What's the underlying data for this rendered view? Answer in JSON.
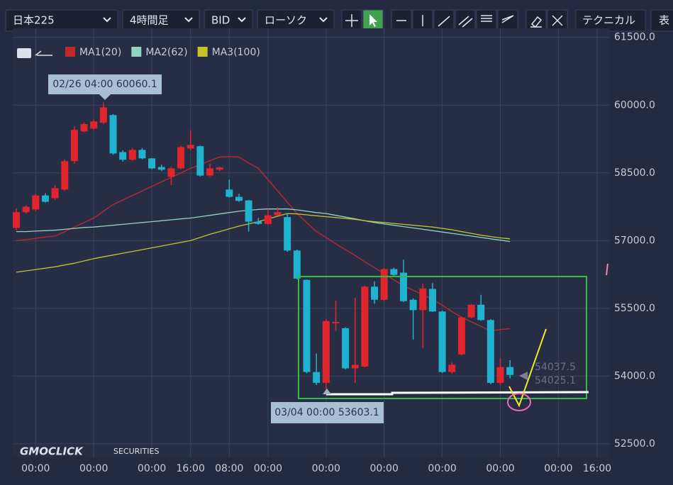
{
  "toolbar": {
    "dropdowns": [
      "日本225",
      "4時間足",
      "BID",
      "ローソク"
    ],
    "buttons": [
      "テクニカル",
      "表"
    ]
  },
  "watermark": {
    "brand": "GMOCLICK",
    "sub": "SECURITIES"
  },
  "chart_data": {
    "type": "candlestick",
    "up_color": "#e0262c",
    "down_color": "#1fb3cf",
    "categories": [
      null,
      null,
      "00:00",
      null,
      null,
      null,
      null,
      null,
      "00:00",
      null,
      null,
      null,
      null,
      null,
      "00:00",
      null,
      null,
      null,
      "16:00",
      null,
      null,
      null,
      "08:00",
      null,
      null,
      null,
      "00:00",
      null,
      null,
      null,
      null,
      null,
      "00:00",
      null,
      null,
      null,
      null,
      null,
      "00:00",
      null,
      null,
      null,
      null,
      null,
      "00:00",
      null,
      null,
      null,
      null,
      null,
      "00:00",
      null,
      null,
      null,
      null,
      null,
      "00:00",
      null,
      null,
      null,
      "16:00",
      null
    ],
    "open": [
      57280,
      57630,
      57690,
      58000,
      57940,
      58130,
      58760,
      59420,
      59480,
      59610,
      59780,
      58960,
      58790,
      59010,
      58820,
      58630,
      58410,
      58600,
      59040,
      59090,
      58440,
      58570,
      58130,
      57970,
      57890,
      57420,
      57370,
      57560,
      57520,
      56780,
      56130,
      54090,
      53850,
      55170,
      55060,
      54170,
      54210,
      55980,
      55690,
      56370,
      56290,
      55690,
      55460,
      55930,
      55430,
      54090,
      54480,
      55300,
      55580,
      55240,
      53850,
      54200,
      null,
      null,
      null,
      null,
      null,
      null,
      null,
      null,
      null,
      null
    ],
    "high": [
      57710,
      57780,
      58040,
      58050,
      58220,
      58800,
      59530,
      59620,
      59680,
      60060.1,
      59800,
      59000,
      59050,
      59050,
      58830,
      58680,
      58640,
      59100,
      59450,
      59100,
      58700,
      58640,
      58350,
      58040,
      57900,
      57500,
      57700,
      57740,
      57600,
      56800,
      56140,
      54500,
      55260,
      55670,
      55080,
      55730,
      56000,
      56100,
      56400,
      56400,
      56580,
      55720,
      56050,
      56060,
      55450,
      54300,
      55320,
      55600,
      55800,
      55260,
      54400,
      54350,
      null,
      null,
      null,
      null,
      null,
      null,
      null,
      null,
      null,
      null
    ],
    "low": [
      57230,
      57600,
      57650,
      57840,
      57900,
      58100,
      58700,
      59400,
      59460,
      59580,
      58900,
      58750,
      58770,
      58800,
      58580,
      58540,
      58230,
      58580,
      59000,
      58420,
      58420,
      58540,
      57950,
      57860,
      57200,
      57350,
      57350,
      57550,
      56750,
      56140,
      54060,
      53800,
      53603.1,
      55000,
      54150,
      53850,
      54190,
      55600,
      55660,
      56200,
      55640,
      54810,
      54620,
      55420,
      54070,
      54050,
      54460,
      55280,
      55220,
      53820,
      53800,
      53950,
      null,
      null,
      null,
      null,
      null,
      null,
      null,
      null,
      null,
      null
    ],
    "close": [
      57630,
      57750,
      58000,
      57860,
      58160,
      58760,
      59450,
      59580,
      59640,
      59950,
      58930,
      58790,
      59010,
      58820,
      58600,
      58570,
      58600,
      59070,
      59120,
      58440,
      58600,
      58620,
      57970,
      57880,
      57420,
      57370,
      57560,
      57630,
      56780,
      56160,
      54090,
      53850,
      55220,
      55200,
      54170,
      54250,
      55980,
      55690,
      56370,
      56240,
      55660,
      55460,
      55940,
      55430,
      54090,
      54250,
      55300,
      55580,
      55240,
      53850,
      54200,
      54025.1,
      null,
      null,
      null,
      null,
      null,
      null,
      null,
      null,
      null,
      null
    ],
    "series": [
      {
        "name": "MA1(20)",
        "color": "#c0282c",
        "values": [
          57000,
          57020,
          57050,
          57080,
          57100,
          57200,
          57300,
          57400,
          57500,
          57650,
          57800,
          57900,
          58000,
          58100,
          58200,
          58300,
          58400,
          58500,
          58600,
          58680,
          58770,
          58850,
          58860,
          58850,
          58720,
          58600,
          58350,
          58100,
          57850,
          57600,
          57400,
          57200,
          57070,
          56930,
          56800,
          56670,
          56530,
          56400,
          56270,
          56130,
          56000,
          55900,
          55800,
          55700,
          55570,
          55430,
          55300,
          55200,
          55100,
          55000,
          55030,
          55050,
          null,
          null,
          null,
          null,
          null,
          null,
          null,
          null,
          null,
          null
        ]
      },
      {
        "name": "MA2(62)",
        "color": "#8fd3c0",
        "values": [
          57200,
          57200,
          57210,
          57220,
          57230,
          57250,
          57270,
          57290,
          57300,
          57320,
          57340,
          57360,
          57380,
          57400,
          57420,
          57440,
          57460,
          57480,
          57500,
          57530,
          57560,
          57590,
          57620,
          57650,
          57670,
          57690,
          57700,
          57700,
          57700,
          57680,
          57650,
          57620,
          57600,
          57560,
          57520,
          57480,
          57440,
          57400,
          57370,
          57340,
          57310,
          57280,
          57250,
          57220,
          57190,
          57160,
          57130,
          57100,
          57070,
          57040,
          57010,
          56980,
          null,
          null,
          null,
          null,
          null,
          null,
          null,
          null,
          null,
          null
        ]
      },
      {
        "name": "MA3(100)",
        "color": "#c8c22a",
        "values": [
          56300,
          56330,
          56360,
          56390,
          56420,
          56460,
          56500,
          56550,
          56600,
          56640,
          56680,
          56720,
          56760,
          56800,
          56840,
          56880,
          56920,
          56960,
          57000,
          57070,
          57140,
          57200,
          57260,
          57320,
          57370,
          57420,
          57480,
          57540,
          57600,
          57590,
          57570,
          57550,
          57530,
          57510,
          57490,
          57470,
          57440,
          57420,
          57400,
          57380,
          57360,
          57340,
          57320,
          57300,
          57270,
          57240,
          57200,
          57160,
          57120,
          57090,
          57060,
          57040,
          null,
          null,
          null,
          null,
          null,
          null,
          null,
          null,
          null,
          null
        ]
      }
    ],
    "ylim": [
      52200,
      61700
    ],
    "yticks": [
      {
        "value": 52500,
        "label": "52500.0"
      },
      {
        "value": 54000,
        "label": "54000.0"
      },
      {
        "value": 55500,
        "label": "55500.0"
      },
      {
        "value": 57000,
        "label": "57000.0"
      },
      {
        "value": 58500,
        "label": "58500.0"
      },
      {
        "value": 60000,
        "label": "60000.0"
      },
      {
        "value": 61500,
        "label": "61500.0"
      }
    ],
    "grid": true,
    "annotations": [
      "02/26 04:00 60060.1",
      "03/04 00:00 53603.1",
      "54037.5",
      "54025.1"
    ]
  }
}
